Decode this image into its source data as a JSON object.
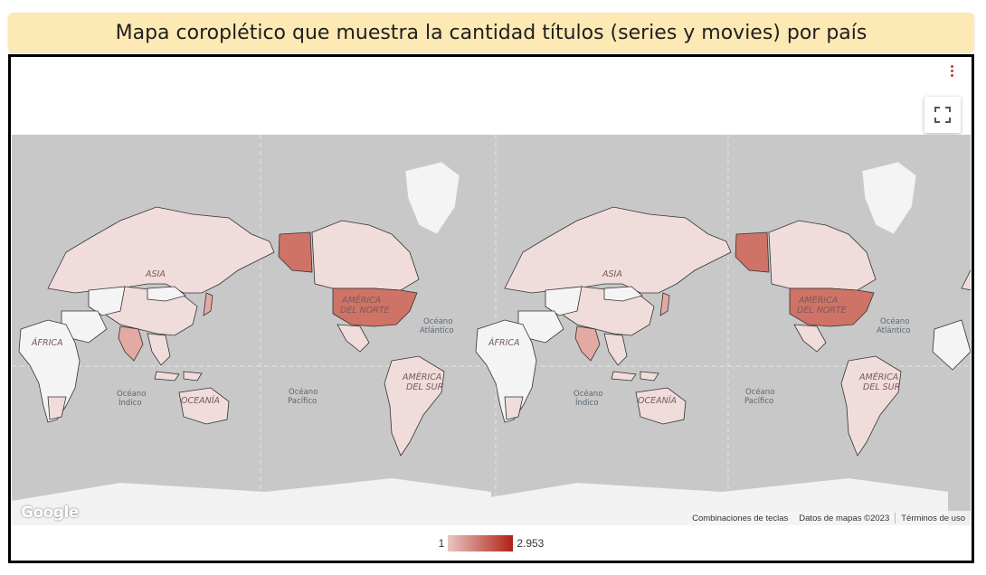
{
  "title": "Mapa coroplético que muestra la cantidad títulos (series y movies) por país",
  "legend": {
    "min": "1",
    "max": "2.953",
    "min_color": "#e9c6c3",
    "max_color": "#b02214"
  },
  "map_labels": {
    "asia": "ASIA",
    "north_america_1": "AMÉRICA",
    "north_america_2": "DEL NORTE",
    "africa": "ÁFRICA",
    "oceania": "OCEANÍA",
    "south_america_1": "AMÉRICA",
    "south_america_2": "DEL SUR",
    "atlantic_1": "Océano",
    "atlantic_2": "Atlántico",
    "pacific_1": "Océano",
    "pacific_2": "Pacífico",
    "indian_1": "Océano",
    "indian_2": "Índico"
  },
  "attribution": {
    "shortcuts": "Combinaciones de teclas",
    "map_data": "Datos de mapas ©2023",
    "terms": "Términos de uso"
  },
  "google_logo": "Google",
  "colors": {
    "ocean": "#c8c8c8",
    "land_nodata": "#f2f2f2",
    "land_low": "#f0dcda",
    "land_mid": "#e3aaa3",
    "land_high": "#cf7366"
  }
}
